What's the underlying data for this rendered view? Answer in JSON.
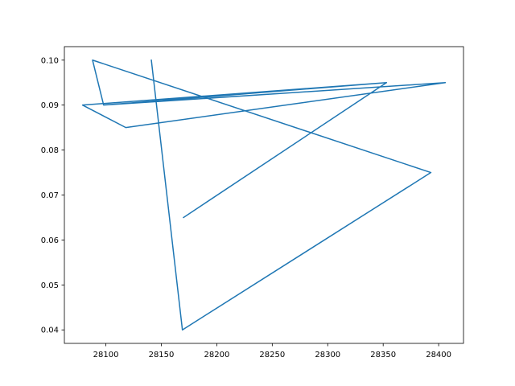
{
  "chart_data": {
    "type": "line",
    "title": "",
    "xlabel": "",
    "ylabel": "",
    "xlim": [
      28062.6,
      28422.4
    ],
    "ylim": [
      0.037,
      0.103
    ],
    "grid": false,
    "line_color": "#1f77b4",
    "x_ticks": [
      "28100",
      "28150",
      "28200",
      "28250",
      "28300",
      "28350",
      "28400"
    ],
    "y_ticks": [
      "0.04",
      "0.05",
      "0.06",
      "0.07",
      "0.08",
      "0.09",
      "0.10"
    ],
    "series": [
      {
        "x": [
          28170,
          28353,
          28098,
          28406,
          28118,
          28079,
          28353,
          28098,
          28088,
          28393,
          28169,
          28141
        ],
        "y": [
          0.065,
          0.095,
          0.09,
          0.095,
          0.085,
          0.09,
          0.095,
          0.09,
          0.1,
          0.075,
          0.04,
          0.1
        ]
      }
    ]
  }
}
